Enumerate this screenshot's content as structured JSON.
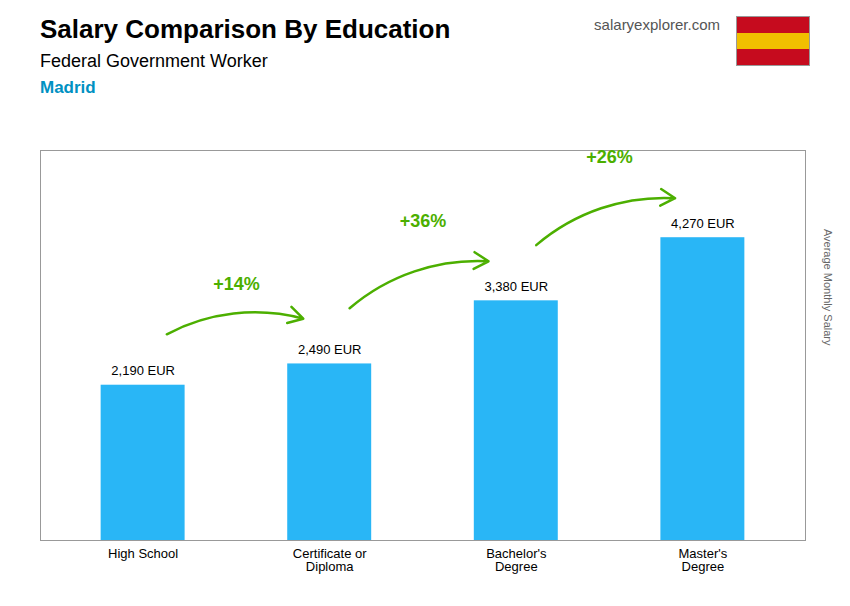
{
  "chart_data": {
    "type": "bar",
    "title": "Salary Comparison By Education",
    "subtitle": "Federal Government Worker",
    "ylabel": "Average Monthly Salary",
    "categories": [
      "High School",
      "Certificate or\nDiploma",
      "Bachelor's\nDegree",
      "Master's\nDegree"
    ],
    "values": [
      2190,
      2490,
      3380,
      4270
    ],
    "value_labels": [
      "2,190 EUR",
      "2,490 EUR",
      "3,380 EUR",
      "4,270 EUR"
    ],
    "data_labels": true,
    "color": "#29b6f6",
    "ylim": [
      0,
      5500
    ],
    "grid": false,
    "tick_labels": "x",
    "annotations": [
      {
        "text": "Madrid"
      },
      {
        "text": "salaryexplorer.com"
      },
      {
        "text": "+14%",
        "from": "High School",
        "to": "Certificate or\nDiploma"
      },
      {
        "text": "+36%",
        "from": "Certificate or\nDiploma",
        "to": "Bachelor's\nDegree"
      },
      {
        "text": "+26%",
        "from": "Bachelor's\nDegree",
        "to": "Master's\nDegree"
      }
    ]
  }
}
